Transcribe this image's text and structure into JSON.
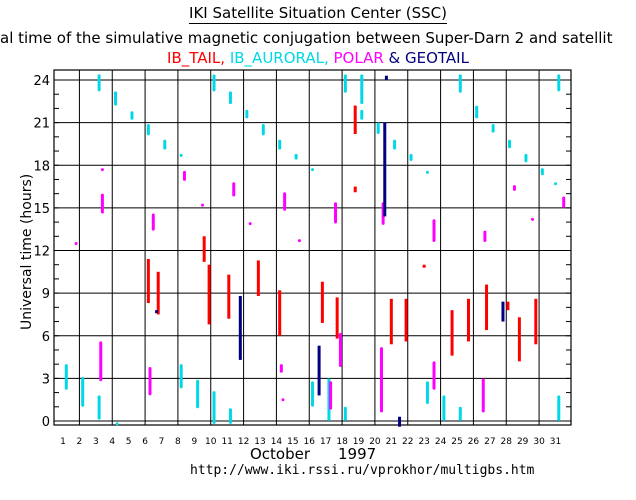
{
  "title": "IKI Satellite Situation Center (SSC)",
  "subtitle": "al time of the simulative magnetic conjugation between Super-Darn 2 and satellit",
  "legend": [
    {
      "name": "IB_TAIL,",
      "color": "#ff0000"
    },
    {
      "name": "IB_AURORAL,",
      "color": "#00d8e8"
    },
    {
      "name": "POLAR",
      "color": "#ff00ff"
    },
    {
      "name": "& GEOTAIL",
      "color": "#000080"
    }
  ],
  "url": "http://www.iki.rssi.ru/vprokhor/multigbs.htm",
  "chart_data": {
    "type": "scatter",
    "title": "IKI Satellite Situation Center (SSC)",
    "ylabel": "Universal time  (hours)",
    "xlabel_month": "October",
    "xlabel_year": "1997",
    "xlim": [
      1,
      31
    ],
    "ylim": [
      0,
      24
    ],
    "grid": true,
    "x_ticks": [
      1,
      2,
      3,
      4,
      5,
      6,
      7,
      8,
      9,
      10,
      11,
      12,
      13,
      14,
      15,
      16,
      17,
      18,
      19,
      20,
      21,
      22,
      23,
      24,
      25,
      26,
      27,
      28,
      29,
      30,
      31
    ],
    "y_ticks": [
      0,
      3,
      6,
      9,
      12,
      15,
      18,
      21,
      24
    ],
    "series": [
      {
        "name": "IB_TAIL",
        "color": "#ff0000",
        "segments": [
          {
            "day": 6.2,
            "start": 8.3,
            "end": 11.4
          },
          {
            "day": 6.8,
            "start": 7.5,
            "end": 10.5
          },
          {
            "day": 9.6,
            "start": 11.2,
            "end": 13.0
          },
          {
            "day": 9.9,
            "start": 6.8,
            "end": 11.0
          },
          {
            "day": 11.1,
            "start": 7.2,
            "end": 10.3
          },
          {
            "day": 12.9,
            "start": 8.8,
            "end": 11.3
          },
          {
            "day": 14.2,
            "start": 6.0,
            "end": 9.2
          },
          {
            "day": 16.8,
            "start": 6.9,
            "end": 9.8
          },
          {
            "day": 17.7,
            "start": 5.8,
            "end": 8.7
          },
          {
            "day": 18.8,
            "start": 20.2,
            "end": 22.2
          },
          {
            "day": 18.8,
            "start": 16.1,
            "end": 16.5
          },
          {
            "day": 21.0,
            "start": 5.4,
            "end": 8.6
          },
          {
            "day": 21.9,
            "start": 5.6,
            "end": 8.6
          },
          {
            "day": 23.0,
            "start": 10.8,
            "end": 11.0
          },
          {
            "day": 24.7,
            "start": 4.6,
            "end": 7.8
          },
          {
            "day": 25.7,
            "start": 5.6,
            "end": 8.6
          },
          {
            "day": 26.8,
            "start": 6.4,
            "end": 9.6
          },
          {
            "day": 28.1,
            "start": 7.8,
            "end": 8.4
          },
          {
            "day": 28.8,
            "start": 4.2,
            "end": 7.3
          },
          {
            "day": 29.8,
            "start": 5.4,
            "end": 8.6
          }
        ]
      },
      {
        "name": "IB_AURORAL",
        "color": "#00d8e8",
        "segments": [
          {
            "day": 1.2,
            "start": 2.2,
            "end": 4.0
          },
          {
            "day": 2.2,
            "start": 1.0,
            "end": 3.1
          },
          {
            "day": 3.2,
            "start": 23.2,
            "end": 24.4
          },
          {
            "day": 3.2,
            "start": 0.1,
            "end": 1.8
          },
          {
            "day": 4.2,
            "start": 22.2,
            "end": 23.2
          },
          {
            "day": 4.3,
            "start": -0.3,
            "end": -0.1
          },
          {
            "day": 5.2,
            "start": 21.2,
            "end": 21.8
          },
          {
            "day": 6.2,
            "start": 20.1,
            "end": 20.9
          },
          {
            "day": 7.2,
            "start": 19.1,
            "end": 19.8
          },
          {
            "day": 8.2,
            "start": 18.6,
            "end": 18.8
          },
          {
            "day": 8.2,
            "start": 2.3,
            "end": 4.0
          },
          {
            "day": 9.2,
            "start": 0.9,
            "end": 2.9
          },
          {
            "day": 10.2,
            "start": 23.2,
            "end": 24.4
          },
          {
            "day": 10.2,
            "start": -0.2,
            "end": 2.1
          },
          {
            "day": 11.2,
            "start": 22.3,
            "end": 23.2
          },
          {
            "day": 11.2,
            "start": -0.2,
            "end": 0.9
          },
          {
            "day": 12.2,
            "start": 21.3,
            "end": 21.9
          },
          {
            "day": 13.2,
            "start": 20.1,
            "end": 20.9
          },
          {
            "day": 14.2,
            "start": 19.1,
            "end": 19.8
          },
          {
            "day": 15.2,
            "start": 18.4,
            "end": 18.8
          },
          {
            "day": 16.2,
            "start": 17.6,
            "end": 17.8
          },
          {
            "day": 16.2,
            "start": 1.0,
            "end": 2.8
          },
          {
            "day": 17.2,
            "start": 0.0,
            "end": 3.0
          },
          {
            "day": 18.2,
            "start": 23.1,
            "end": 24.4
          },
          {
            "day": 18.2,
            "start": 0.0,
            "end": 1.0
          },
          {
            "day": 19.2,
            "start": 22.3,
            "end": 24.4
          },
          {
            "day": 19.2,
            "start": 21.2,
            "end": 21.9
          },
          {
            "day": 20.2,
            "start": 20.2,
            "end": 21.0
          },
          {
            "day": 21.2,
            "start": 19.1,
            "end": 19.8
          },
          {
            "day": 22.2,
            "start": 18.3,
            "end": 18.8
          },
          {
            "day": 23.2,
            "start": 17.4,
            "end": 17.6
          },
          {
            "day": 23.2,
            "start": 1.2,
            "end": 2.8
          },
          {
            "day": 24.2,
            "start": 0.0,
            "end": 1.8
          },
          {
            "day": 25.2,
            "start": 23.1,
            "end": 24.4
          },
          {
            "day": 25.2,
            "start": 0.0,
            "end": 1.0
          },
          {
            "day": 26.2,
            "start": 21.3,
            "end": 22.2
          },
          {
            "day": 27.2,
            "start": 20.3,
            "end": 20.9
          },
          {
            "day": 28.2,
            "start": 19.2,
            "end": 19.8
          },
          {
            "day": 29.2,
            "start": 18.2,
            "end": 18.8
          },
          {
            "day": 30.2,
            "start": 17.3,
            "end": 17.8
          },
          {
            "day": 31.0,
            "start": 16.6,
            "end": 16.8
          },
          {
            "day": 31.2,
            "start": 23.2,
            "end": 24.4
          },
          {
            "day": 31.2,
            "start": 0.0,
            "end": 1.8
          }
        ]
      },
      {
        "name": "POLAR",
        "color": "#ff00ff",
        "segments": [
          {
            "day": 1.8,
            "start": 12.4,
            "end": 12.6
          },
          {
            "day": 3.3,
            "start": 2.8,
            "end": 5.6
          },
          {
            "day": 3.4,
            "start": 17.6,
            "end": 17.8
          },
          {
            "day": 3.4,
            "start": 14.6,
            "end": 16.0
          },
          {
            "day": 6.3,
            "start": 1.8,
            "end": 3.8
          },
          {
            "day": 6.5,
            "start": 13.4,
            "end": 14.6
          },
          {
            "day": 8.4,
            "start": 16.9,
            "end": 17.6
          },
          {
            "day": 9.5,
            "start": 15.1,
            "end": 15.3
          },
          {
            "day": 11.4,
            "start": 15.8,
            "end": 16.8
          },
          {
            "day": 12.4,
            "start": 13.8,
            "end": 14.0
          },
          {
            "day": 14.3,
            "start": 3.4,
            "end": 4.0
          },
          {
            "day": 14.4,
            "start": 1.4,
            "end": 1.6
          },
          {
            "day": 14.5,
            "start": 14.8,
            "end": 16.1
          },
          {
            "day": 15.4,
            "start": 12.6,
            "end": 12.8
          },
          {
            "day": 17.3,
            "start": 0.8,
            "end": 2.8
          },
          {
            "day": 17.6,
            "start": 13.9,
            "end": 15.4
          },
          {
            "day": 17.9,
            "start": 3.8,
            "end": 6.2
          },
          {
            "day": 20.4,
            "start": 0.6,
            "end": 5.2
          },
          {
            "day": 20.5,
            "start": 13.8,
            "end": 15.4
          },
          {
            "day": 23.6,
            "start": 2.2,
            "end": 4.2
          },
          {
            "day": 23.6,
            "start": 12.6,
            "end": 14.2
          },
          {
            "day": 26.6,
            "start": 0.6,
            "end": 3.0
          },
          {
            "day": 26.7,
            "start": 12.6,
            "end": 13.4
          },
          {
            "day": 28.5,
            "start": 16.2,
            "end": 16.6
          },
          {
            "day": 29.6,
            "start": 14.1,
            "end": 14.3
          },
          {
            "day": 31.5,
            "start": 15.0,
            "end": 15.8
          }
        ]
      },
      {
        "name": "GEOTAIL",
        "color": "#000080",
        "segments": [
          {
            "day": 6.7,
            "start": 7.6,
            "end": 7.8
          },
          {
            "day": 11.8,
            "start": 4.3,
            "end": 8.8
          },
          {
            "day": 16.6,
            "start": 1.8,
            "end": 5.3
          },
          {
            "day": 20.6,
            "start": 14.4,
            "end": 21.0
          },
          {
            "day": 20.7,
            "start": 24.0,
            "end": 24.3
          },
          {
            "day": 21.5,
            "start": -0.4,
            "end": 0.3
          },
          {
            "day": 27.8,
            "start": 7.0,
            "end": 8.4
          }
        ]
      }
    ]
  }
}
